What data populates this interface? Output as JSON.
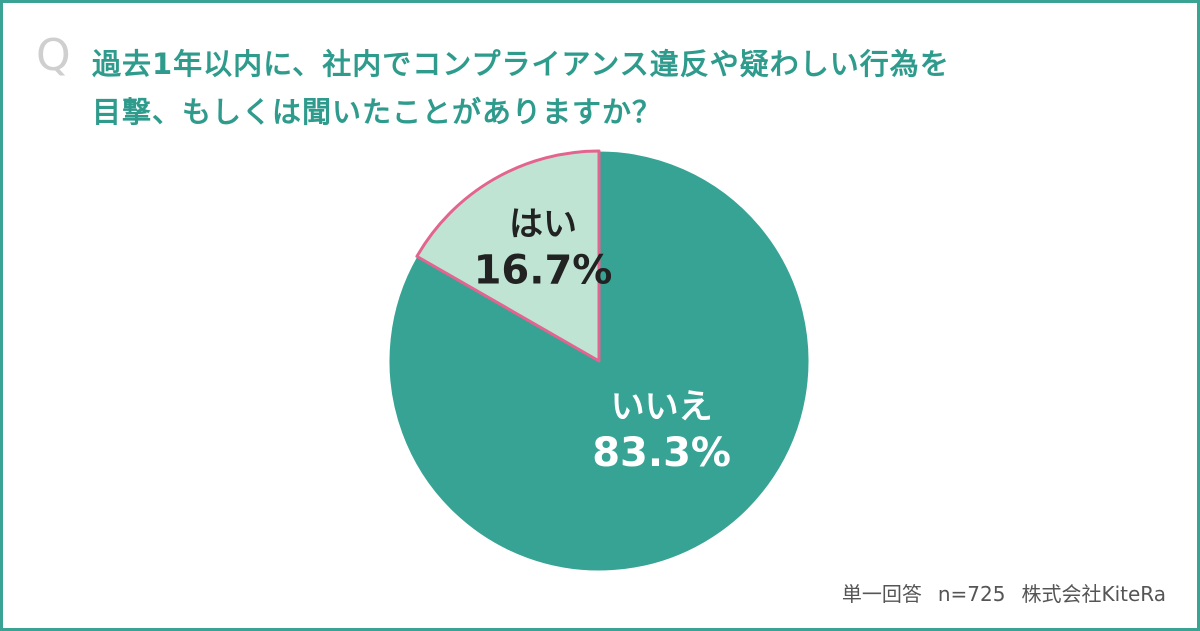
{
  "question": {
    "mark": "Q",
    "line1": "過去1年以内に、社内でコンプライアンス違反や疑わしい行為を",
    "line2": "目撃、もしくは聞いたことがありますか？"
  },
  "chart_data": {
    "type": "pie",
    "slices": [
      {
        "label": "はい",
        "value": 16.7,
        "value_label": "16.7%",
        "color": "#bfe4d3",
        "text_color": "#222222",
        "stroke": "#e3648f"
      },
      {
        "label": "いいえ",
        "value": 83.3,
        "value_label": "83.3%",
        "color": "#36a394",
        "text_color": "#ffffff",
        "stroke": "#ffffff"
      }
    ]
  },
  "footer": {
    "note": "単一回答",
    "sample": "n=725",
    "source": "株式会社KiteRa"
  },
  "colors": {
    "accent": "#3aa394",
    "question_text": "#2f9b8c"
  }
}
